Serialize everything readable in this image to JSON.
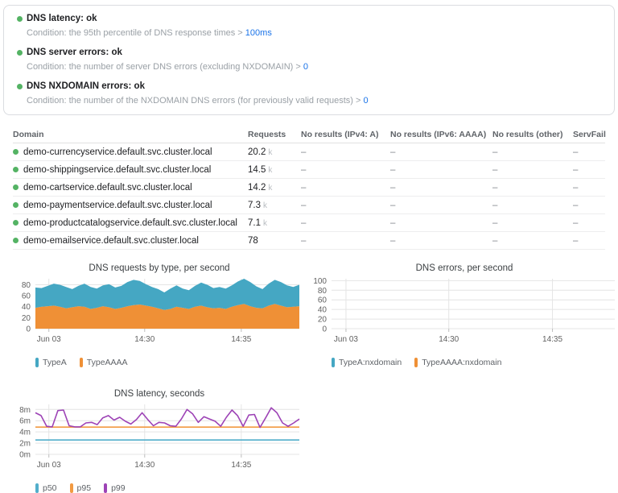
{
  "alerts": {
    "items": [
      {
        "title": "DNS latency: ok",
        "condition_prefix": "Condition: the 95th percentile of DNS response times > ",
        "condition_link": "100ms"
      },
      {
        "title": "DNS server errors: ok",
        "condition_prefix": "Condition: the number of server DNS errors (excluding NXDOMAIN) > ",
        "condition_link": "0"
      },
      {
        "title": "DNS NXDOMAIN errors: ok",
        "condition_prefix": "Condition: the number of the NXDOMAIN DNS errors (for previously valid requests) > ",
        "condition_link": "0"
      }
    ]
  },
  "table": {
    "columns": {
      "domain": "Domain",
      "requests": "Requests",
      "ipv4": "No results (IPv4: A)",
      "ipv6": "No results (IPv6: AAAA)",
      "other": "No results (other)",
      "servfail": "ServFail"
    },
    "rows": [
      {
        "domain": "demo-currencyservice.default.svc.cluster.local",
        "requests": "20.2",
        "unit": "k",
        "ipv4": "–",
        "ipv6": "–",
        "other": "–",
        "servfail": "–"
      },
      {
        "domain": "demo-shippingservice.default.svc.cluster.local",
        "requests": "14.5",
        "unit": "k",
        "ipv4": "–",
        "ipv6": "–",
        "other": "–",
        "servfail": "–"
      },
      {
        "domain": "demo-cartservice.default.svc.cluster.local",
        "requests": "14.2",
        "unit": "k",
        "ipv4": "–",
        "ipv6": "–",
        "other": "–",
        "servfail": "–"
      },
      {
        "domain": "demo-paymentservice.default.svc.cluster.local",
        "requests": "7.3",
        "unit": "k",
        "ipv4": "–",
        "ipv6": "–",
        "other": "–",
        "servfail": "–"
      },
      {
        "domain": "demo-productcatalogservice.default.svc.cluster.local",
        "requests": "7.1",
        "unit": "k",
        "ipv4": "–",
        "ipv6": "–",
        "other": "–",
        "servfail": "–"
      },
      {
        "domain": "demo-emailservice.default.svc.cluster.local",
        "requests": "78",
        "unit": "",
        "ipv4": "–",
        "ipv6": "–",
        "other": "–",
        "servfail": "–"
      }
    ]
  },
  "colors": {
    "status_green": "#54b364",
    "link_blue": "#1a73e8",
    "teal": "#45a7c3",
    "orange": "#ef9036",
    "purple": "#9d43b6",
    "grid": "#e4e4e4",
    "axis_text": "#616161"
  },
  "chart_data": [
    {
      "type": "area",
      "stacked": true,
      "title": "DNS requests by type, per second",
      "x_ticks": [
        {
          "label": "Jun 03",
          "pos": 0.051
        },
        {
          "label": "14:30",
          "pos": 0.414
        },
        {
          "label": "14:35",
          "pos": 0.78
        }
      ],
      "y_ticks": [
        {
          "label": "0",
          "value": 0
        },
        {
          "label": "20",
          "value": 20
        },
        {
          "label": "40",
          "value": 40
        },
        {
          "label": "60",
          "value": 60
        },
        {
          "label": "80",
          "value": 80
        }
      ],
      "y_max": 91,
      "series": [
        {
          "name": "TypeAAAA",
          "color": "#ef9036",
          "values": [
            38,
            40,
            41,
            42,
            40,
            37,
            39,
            41,
            40,
            36,
            38,
            41,
            39,
            36,
            38,
            41,
            43,
            44,
            42,
            40,
            37,
            34,
            36,
            40,
            38,
            36,
            40,
            42,
            39,
            37,
            38,
            36,
            40,
            43,
            45,
            41,
            38,
            37,
            42,
            45,
            42,
            39,
            40,
            41
          ]
        },
        {
          "name": "TypeA",
          "color": "#45a7c3",
          "values": [
            37,
            34,
            37,
            40,
            40,
            39,
            33,
            37,
            42,
            40,
            35,
            38,
            42,
            39,
            40,
            44,
            46,
            43,
            39,
            36,
            35,
            32,
            37,
            39,
            35,
            34,
            38,
            42,
            41,
            37,
            38,
            37,
            39,
            43,
            46,
            44,
            39,
            35,
            40,
            44,
            43,
            40,
            36,
            39
          ]
        }
      ],
      "legend": [
        {
          "label": "TypeA",
          "color": "#45a7c3"
        },
        {
          "label": "TypeAAAA",
          "color": "#ef9036"
        }
      ]
    },
    {
      "type": "area",
      "stacked": true,
      "title": "DNS errors, per second",
      "x_ticks": [
        {
          "label": "Jun 03",
          "pos": 0.051
        },
        {
          "label": "14:30",
          "pos": 0.414
        },
        {
          "label": "14:35",
          "pos": 0.78
        }
      ],
      "y_ticks": [
        {
          "label": "0",
          "value": 0
        },
        {
          "label": "20",
          "value": 20
        },
        {
          "label": "40",
          "value": 40
        },
        {
          "label": "60",
          "value": 60
        },
        {
          "label": "80",
          "value": 80
        },
        {
          "label": "100",
          "value": 100
        }
      ],
      "y_max": 104,
      "series": [],
      "legend": [
        {
          "label": "TypeA:nxdomain",
          "color": "#45a7c3"
        },
        {
          "label": "TypeAAAA:nxdomain",
          "color": "#ef9036"
        }
      ]
    },
    {
      "type": "line",
      "stacked": false,
      "title": "DNS latency, seconds",
      "x_ticks": [
        {
          "label": "Jun 03",
          "pos": 0.051
        },
        {
          "label": "14:30",
          "pos": 0.414
        },
        {
          "label": "14:35",
          "pos": 0.78
        }
      ],
      "y_ticks": [
        {
          "label": "0m",
          "value": 0
        },
        {
          "label": "2m",
          "value": 2
        },
        {
          "label": "4m",
          "value": 4
        },
        {
          "label": "6m",
          "value": 6
        },
        {
          "label": "8m",
          "value": 8
        }
      ],
      "y_max": 8.9,
      "series": [
        {
          "name": "p50",
          "color": "#52aecb",
          "constant": 2.55
        },
        {
          "name": "p95",
          "color": "#f29a41",
          "constant": 4.85
        },
        {
          "name": "p99",
          "color": "#9d43b6",
          "values": [
            7.4,
            6.9,
            5.0,
            4.9,
            7.8,
            7.9,
            5.1,
            4.9,
            4.9,
            5.6,
            5.7,
            5.3,
            6.5,
            6.9,
            6.1,
            6.6,
            5.9,
            5.4,
            6.2,
            7.4,
            6.2,
            5.1,
            5.7,
            5.6,
            5.1,
            5.0,
            6.3,
            8.0,
            7.2,
            5.7,
            6.7,
            6.3,
            5.9,
            5.0,
            6.6,
            7.9,
            6.9,
            5.0,
            7.0,
            7.1,
            4.8,
            6.5,
            8.3,
            7.4,
            5.6,
            5.0,
            5.6,
            6.3
          ]
        }
      ],
      "legend": [
        {
          "label": "p50",
          "color": "#52aecb"
        },
        {
          "label": "p95",
          "color": "#f29a41"
        },
        {
          "label": "p99",
          "color": "#9d43b6"
        }
      ]
    }
  ]
}
